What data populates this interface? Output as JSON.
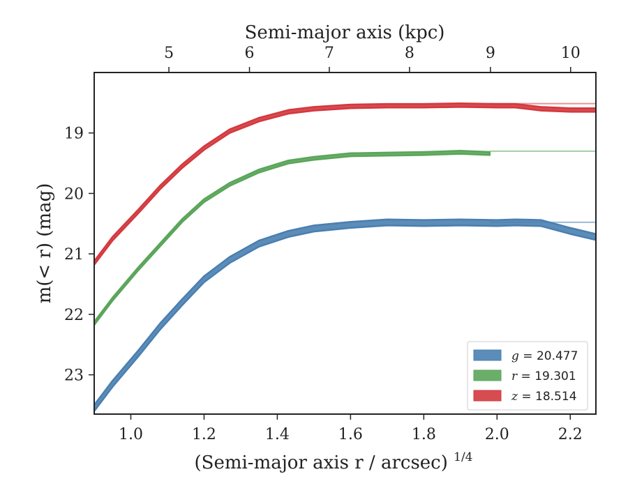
{
  "chart_data": {
    "type": "line",
    "xlabel": "(Semi-major axis r / arcsec)",
    "xlabel_sup": "1/4",
    "ylabel": "m(< r) (mag)",
    "top_xlabel": "Semi-major axis (kpc)",
    "xlim": [
      0.9,
      2.27
    ],
    "ylim": [
      23.65,
      18.0
    ],
    "y_inverted": true,
    "x_ticks": [
      1.0,
      1.2,
      1.4,
      1.6,
      1.8,
      2.0,
      2.2
    ],
    "x_tick_labels": [
      "1.0",
      "1.2",
      "1.4",
      "1.6",
      "1.8",
      "2.0",
      "2.2"
    ],
    "y_ticks": [
      19,
      20,
      21,
      22,
      23
    ],
    "y_tick_labels": [
      "19",
      "20",
      "21",
      "22",
      "23"
    ],
    "top_ticks_kpc": [
      5,
      6,
      7,
      8,
      9,
      10
    ],
    "top_tick_labels": [
      "5",
      "6",
      "7",
      "8",
      "9",
      "10"
    ],
    "top_tick_positions_x": [
      1.104,
      1.324,
      1.542,
      1.761,
      1.982,
      2.201
    ],
    "legend_position": "lower-right",
    "grid": false,
    "series": [
      {
        "name": "g = 20.477",
        "legend_var": "g",
        "legend_value": "= 20.477",
        "color": "#4a7fb0",
        "band_width_mag": 0.1,
        "asymptote": 20.477,
        "x": [
          0.9,
          0.95,
          1.02,
          1.08,
          1.14,
          1.2,
          1.27,
          1.35,
          1.43,
          1.5,
          1.6,
          1.7,
          1.8,
          1.9,
          2.0,
          2.05,
          2.12,
          2.2,
          2.27
        ],
        "y": [
          23.55,
          23.15,
          22.65,
          22.2,
          21.8,
          21.42,
          21.1,
          20.83,
          20.67,
          20.58,
          20.52,
          20.48,
          20.49,
          20.48,
          20.49,
          20.48,
          20.49,
          20.62,
          20.72
        ]
      },
      {
        "name": "r = 19.301",
        "legend_var": "r",
        "legend_value": "= 19.301",
        "color": "#5aa55a",
        "band_width_mag": 0.05,
        "asymptote": 19.301,
        "x": [
          0.9,
          0.95,
          1.02,
          1.08,
          1.14,
          1.2,
          1.27,
          1.35,
          1.43,
          1.5,
          1.6,
          1.7,
          1.8,
          1.9,
          1.98
        ],
        "y": [
          22.15,
          21.75,
          21.25,
          20.85,
          20.45,
          20.12,
          19.85,
          19.63,
          19.48,
          19.42,
          19.36,
          19.35,
          19.34,
          19.32,
          19.34
        ]
      },
      {
        "name": "z = 18.514",
        "legend_var": "z",
        "legend_value": "= 18.514",
        "color": "#d3393e",
        "band_width_mag": 0.06,
        "asymptote": 18.514,
        "x": [
          0.9,
          0.95,
          1.02,
          1.08,
          1.14,
          1.2,
          1.27,
          1.35,
          1.43,
          1.5,
          1.6,
          1.7,
          1.8,
          1.9,
          2.0,
          2.05,
          2.12,
          2.2,
          2.27
        ],
        "y": [
          21.15,
          20.75,
          20.3,
          19.9,
          19.55,
          19.25,
          18.97,
          18.78,
          18.65,
          18.6,
          18.56,
          18.55,
          18.55,
          18.54,
          18.55,
          18.55,
          18.6,
          18.62,
          18.62
        ]
      }
    ]
  }
}
